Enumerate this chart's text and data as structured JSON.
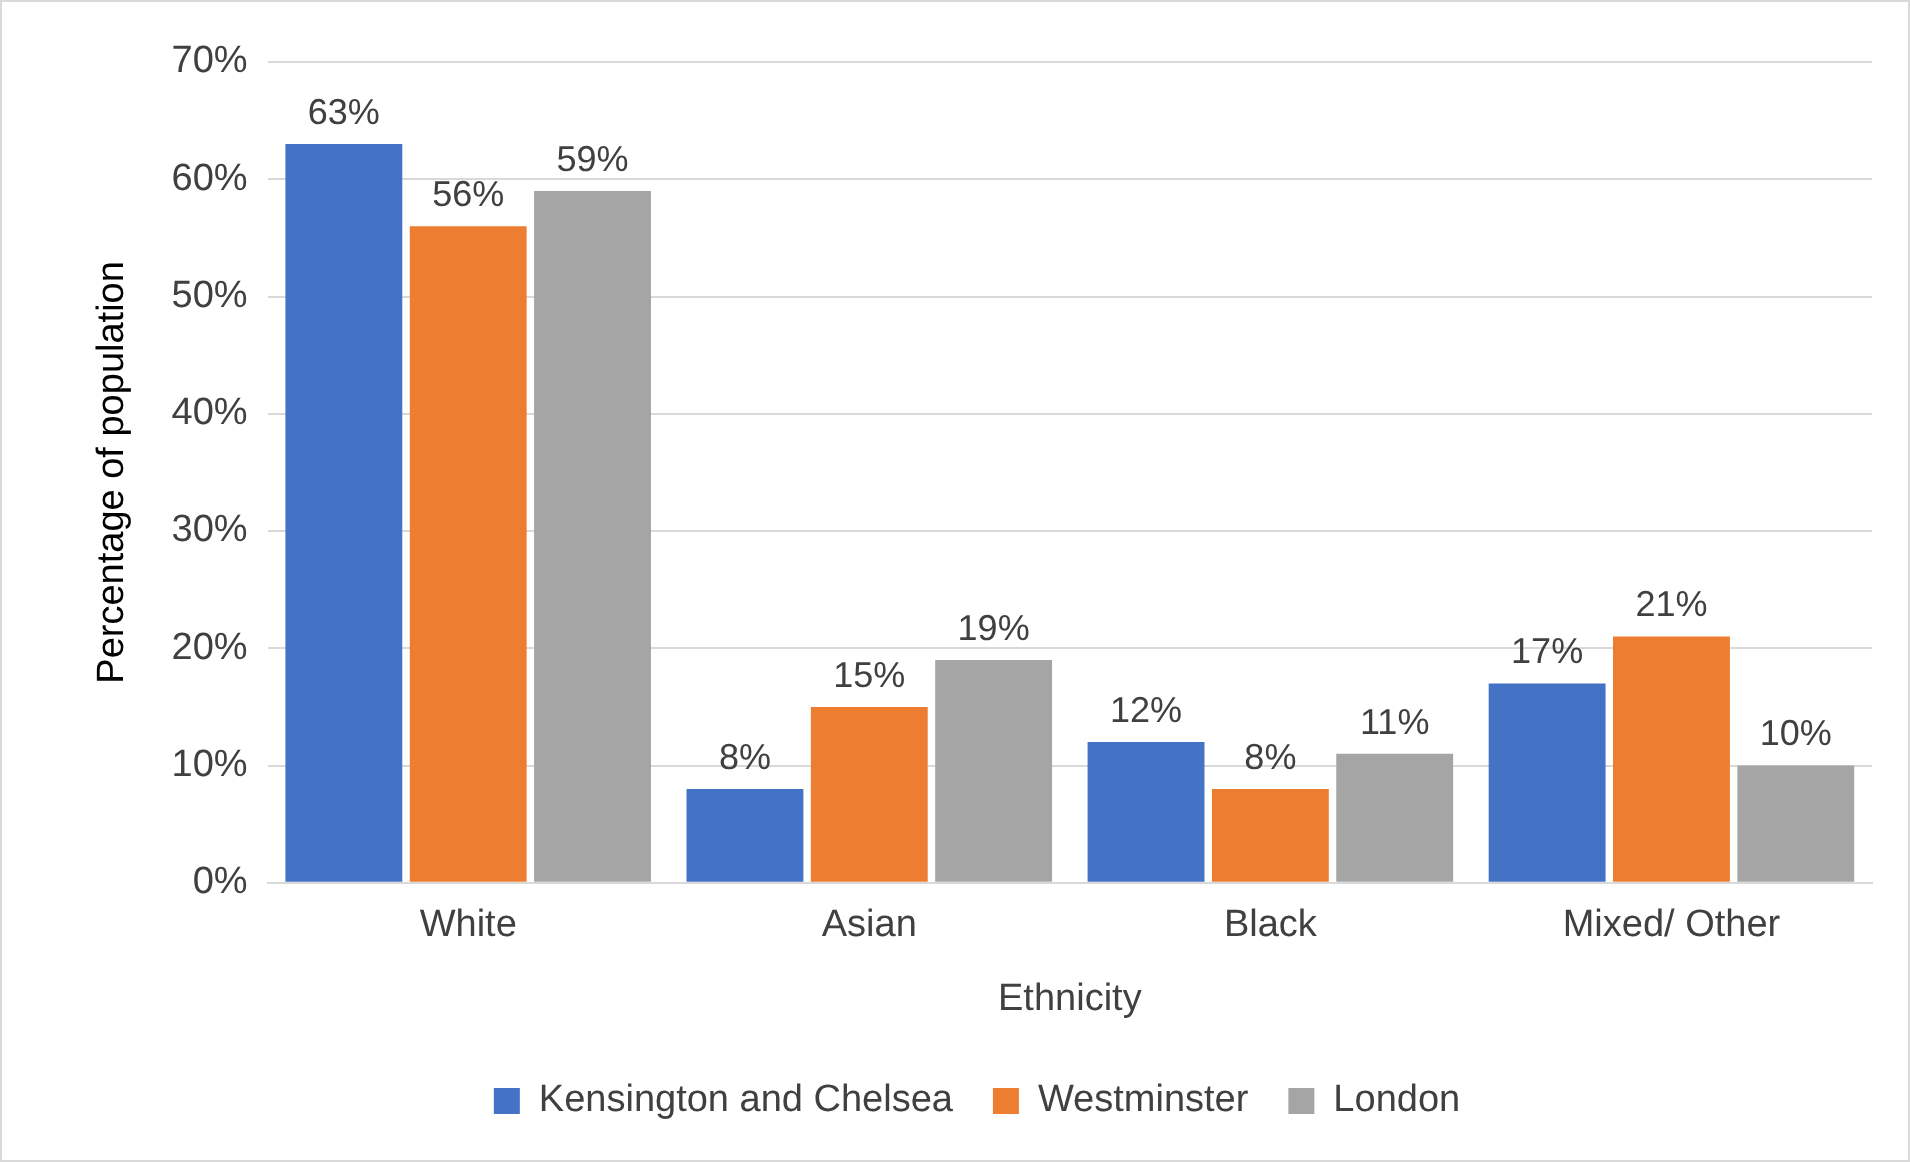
{
  "chart_data": {
    "type": "bar",
    "xlabel": "Ethnicity",
    "ylabel": "Percentage of population",
    "categories": [
      "White",
      "Asian",
      "Black",
      "Mixed/ Other"
    ],
    "series": [
      {
        "name": "Kensington and Chelsea",
        "color": "#4472c4",
        "values": [
          63,
          8,
          12,
          17
        ],
        "value_labels": [
          "63%",
          "8%",
          "12%",
          "17%"
        ]
      },
      {
        "name": "Westminster",
        "color": "#ed7d31",
        "values": [
          56,
          15,
          8,
          21
        ],
        "value_labels": [
          "56%",
          "15%",
          "8%",
          "21%"
        ]
      },
      {
        "name": "London",
        "color": "#a5a5a5",
        "values": [
          59,
          19,
          11,
          10
        ],
        "value_labels": [
          "59%",
          "19%",
          "11%",
          "10%"
        ]
      }
    ],
    "ylim": [
      0,
      70
    ],
    "yticks": [
      {
        "value": 0,
        "label": "0%"
      },
      {
        "value": 10,
        "label": "10%"
      },
      {
        "value": 20,
        "label": "20%"
      },
      {
        "value": 30,
        "label": "30%"
      },
      {
        "value": 40,
        "label": "40%"
      },
      {
        "value": 50,
        "label": "50%"
      },
      {
        "value": 60,
        "label": "60%"
      },
      {
        "value": 70,
        "label": "70%"
      }
    ],
    "grid": "y",
    "legend": "bottom"
  }
}
